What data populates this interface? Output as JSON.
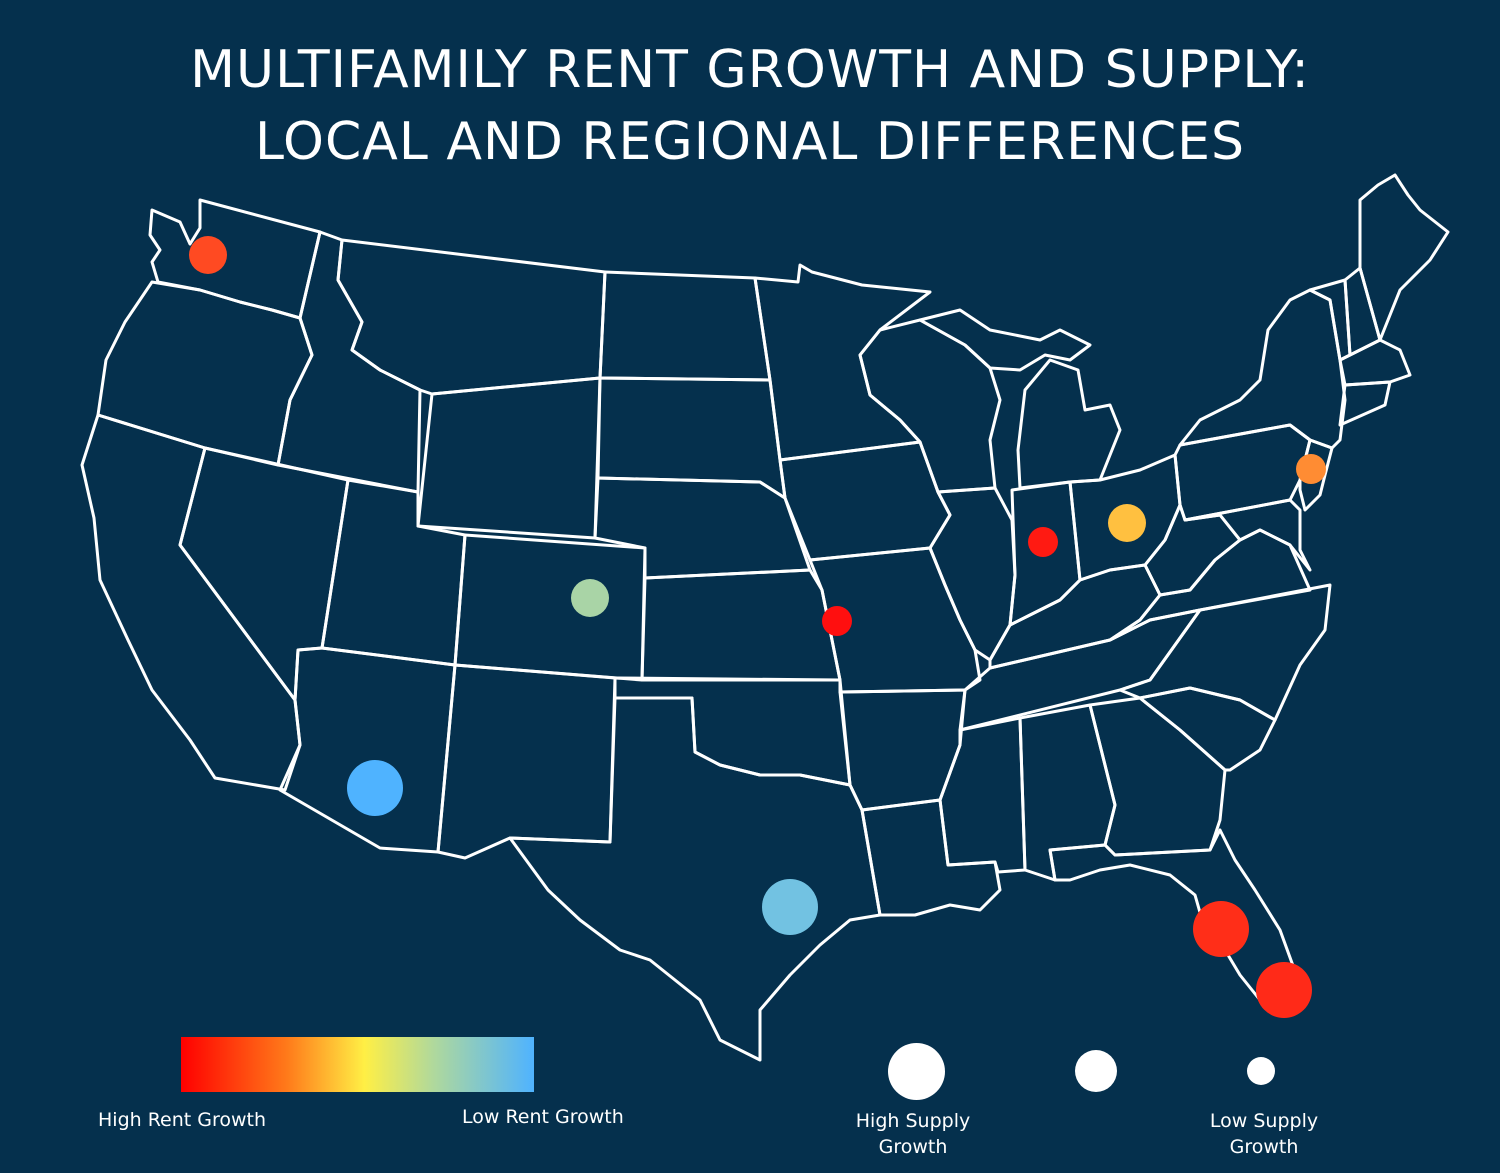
{
  "title": {
    "line1": "MULTIFAMILY RENT GROWTH AND SUPPLY:",
    "line2": "LOCAL AND REGIONAL DIFFERENCES"
  },
  "colors": {
    "background": "#05304d",
    "outline": "#ffffff",
    "high_rent_growth": "#ff0000",
    "low_rent_growth": "#4fb3ff"
  },
  "legend": {
    "rent_scale": {
      "high_label": "High Rent Growth",
      "low_label": "Low Rent Growth"
    },
    "supply_scale": {
      "high_label": "High Supply Growth",
      "low_label": "Low Supply Growth"
    }
  },
  "markers": [
    {
      "place": "Washington",
      "color": "#ff4a22",
      "supply_level": "medium"
    },
    {
      "place": "Colorado",
      "color": "#a9d4a6",
      "supply_level": "medium"
    },
    {
      "place": "Arizona",
      "color": "#4fb3ff",
      "supply_level": "high"
    },
    {
      "place": "Texas",
      "color": "#72c2e2",
      "supply_level": "high"
    },
    {
      "place": "Missouri",
      "color": "#ff0f0f",
      "supply_level": "low"
    },
    {
      "place": "Indiana",
      "color": "#ff1a12",
      "supply_level": "low"
    },
    {
      "place": "Ohio",
      "color": "#ffc040",
      "supply_level": "medium"
    },
    {
      "place": "New Jersey",
      "color": "#ff8c33",
      "supply_level": "low"
    },
    {
      "place": "Central Florida",
      "color": "#ff2e18",
      "supply_level": "high"
    },
    {
      "place": "South Florida",
      "color": "#ff2a18",
      "supply_level": "high"
    }
  ]
}
